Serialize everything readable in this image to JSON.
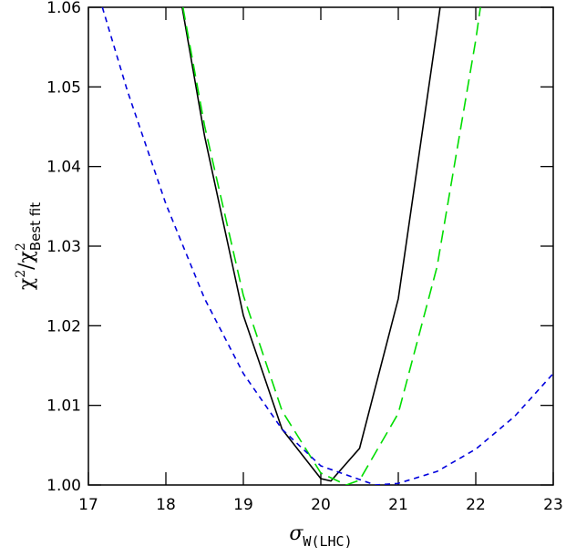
{
  "chart_data": {
    "type": "line",
    "xlabel": [
      "σ",
      "W",
      "(LHC)"
    ],
    "ylabel": [
      "χ",
      "2",
      "/χ",
      "2",
      "Best fit"
    ],
    "xlim": [
      17,
      23
    ],
    "ylim": [
      1.0,
      1.06
    ],
    "xticks": [
      17,
      18,
      19,
      20,
      21,
      22,
      23
    ],
    "yticks": [
      {
        "value": 1.0,
        "label": "1.00"
      },
      {
        "value": 1.01,
        "label": "1.01"
      },
      {
        "value": 1.02,
        "label": "1.02"
      },
      {
        "value": 1.03,
        "label": "1.03"
      },
      {
        "value": 1.04,
        "label": "1.04"
      },
      {
        "value": 1.05,
        "label": "1.05"
      },
      {
        "value": 1.06,
        "label": "1.06"
      }
    ],
    "series": [
      {
        "color": "#000000",
        "style": "solid",
        "x": [
          18.21,
          18.5,
          19,
          19.5,
          20,
          20.13,
          20.5,
          21,
          21.5,
          21.54
        ],
        "values": [
          1.06,
          1.0438,
          1.0213,
          1.007,
          1.0008,
          1.0005,
          1.0046,
          1.0234,
          1.0572,
          1.06
        ]
      },
      {
        "color": "#00dd00",
        "style": "long-dash",
        "x": [
          18.22,
          18.5,
          19,
          19.5,
          20,
          20.33,
          20.5,
          21,
          21.5,
          22,
          22.06
        ],
        "values": [
          1.06,
          1.0451,
          1.0238,
          1.0093,
          1.0015,
          1.0,
          1.0006,
          1.009,
          1.0274,
          1.0559,
          1.06
        ]
      },
      {
        "color": "#0000dd",
        "style": "short-dash",
        "x": [
          17.18,
          17.5,
          18,
          18.5,
          19,
          19.5,
          20,
          20.7,
          21,
          21.5,
          22,
          22.5,
          23
        ],
        "values": [
          1.06,
          1.0496,
          1.0353,
          1.0234,
          1.014,
          1.007,
          1.0024,
          1.0,
          1.0002,
          1.0017,
          1.0045,
          1.0086,
          1.014
        ]
      }
    ]
  }
}
